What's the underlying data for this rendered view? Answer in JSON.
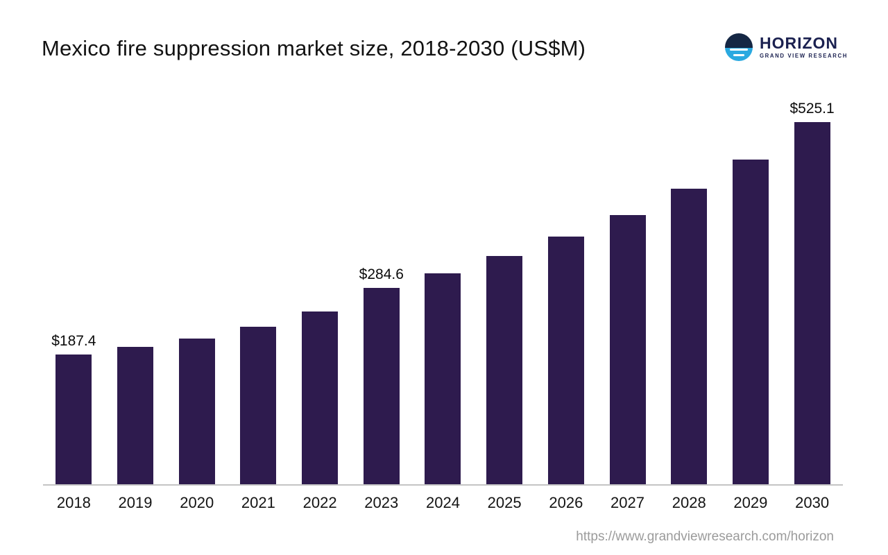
{
  "page": {
    "background": "#ffffff"
  },
  "header": {
    "title": "Mexico fire suppression market size, 2018-2030 (US$M)",
    "logo": {
      "name": "HORIZON",
      "subtitle": "GRAND VIEW RESEARCH",
      "icon": "horizon-sunrise-circle-icon",
      "navy": "#152744",
      "blue": "#2aa9e0"
    }
  },
  "footer": {
    "url": "https://www.grandviewresearch.com/horizon"
  },
  "chart_data": {
    "type": "bar",
    "title": "Mexico fire suppression market size, 2018-2030 (US$M)",
    "xlabel": "",
    "ylabel": "",
    "categories": [
      "2018",
      "2019",
      "2020",
      "2021",
      "2022",
      "2023",
      "2024",
      "2025",
      "2026",
      "2027",
      "2028",
      "2029",
      "2030"
    ],
    "values": [
      187.4,
      199,
      211,
      228,
      250,
      284.6,
      305,
      330,
      358,
      390,
      428,
      470,
      525.1
    ],
    "labeled_points": [
      {
        "index": 0,
        "label": "$187.4"
      },
      {
        "index": 5,
        "label": "$284.6"
      },
      {
        "index": 12,
        "label": "$525.1"
      }
    ],
    "bar_color": "#2e1b4e",
    "axis_color": "#c4c4c4",
    "ylim": [
      0,
      560
    ],
    "grid": false,
    "legend": false,
    "legend_position": "none"
  }
}
